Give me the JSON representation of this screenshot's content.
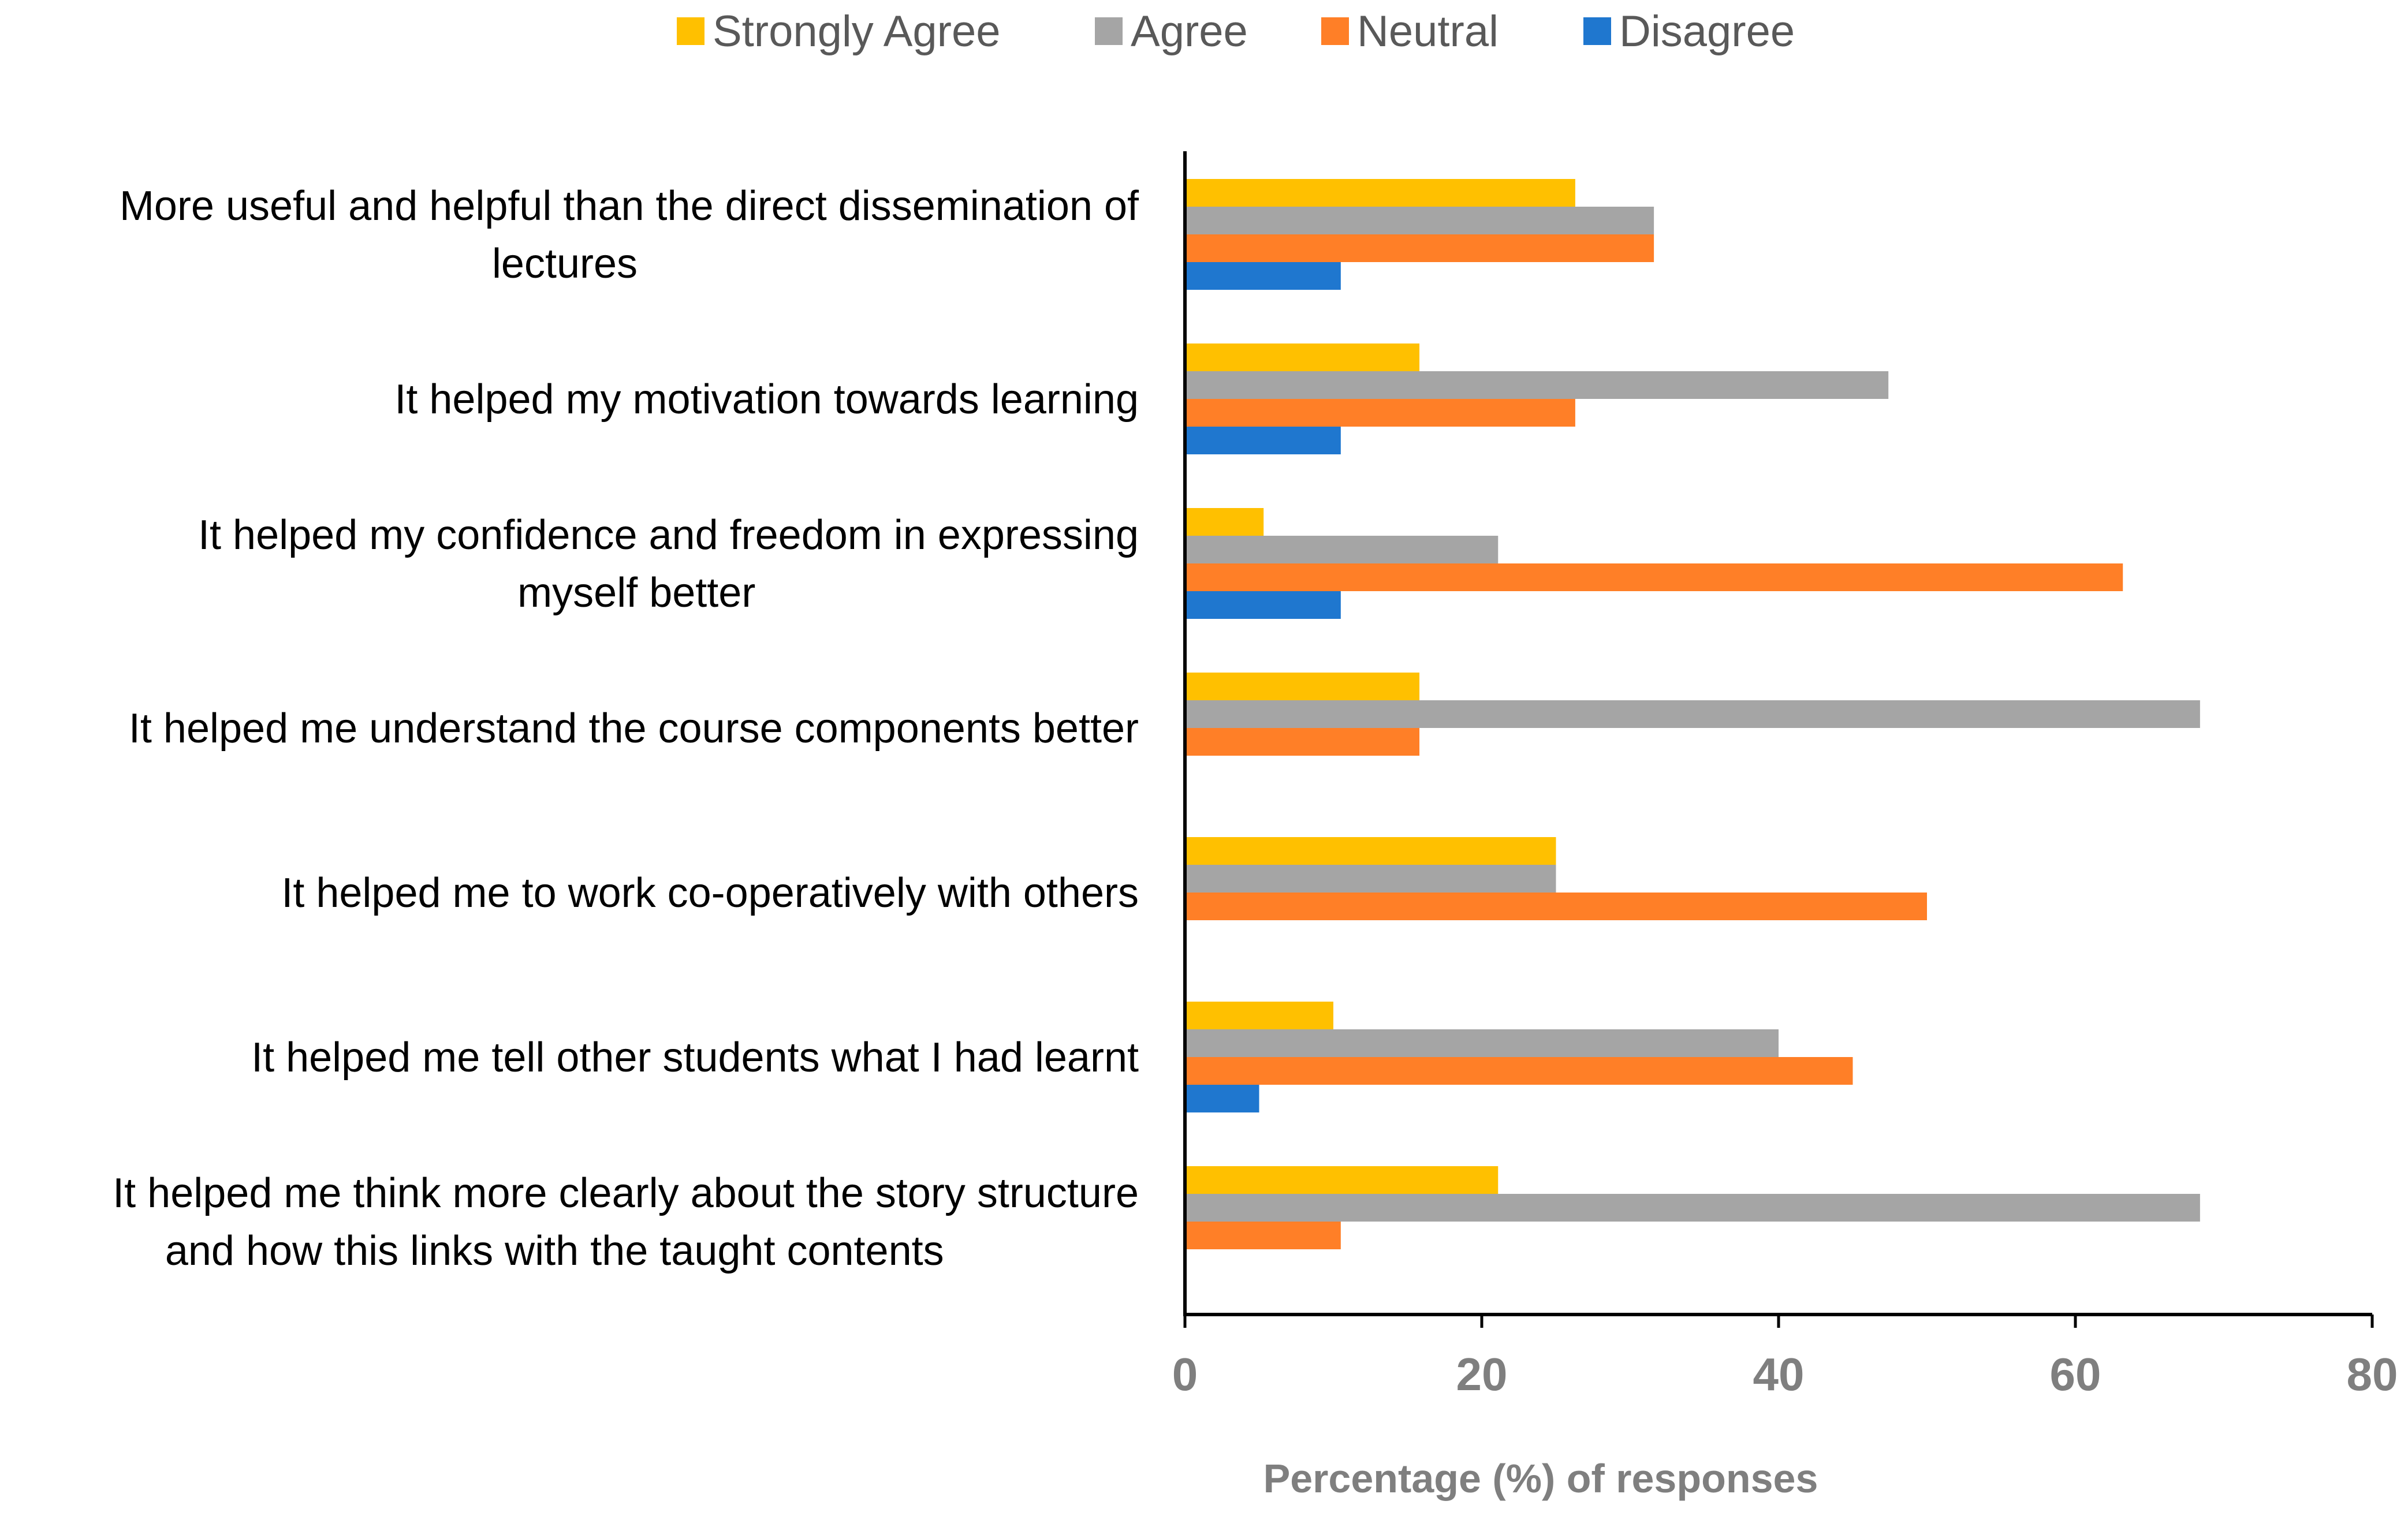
{
  "chart_data": {
    "type": "bar",
    "orientation": "horizontal",
    "title": "",
    "xlabel": "Percentage (%) of responses",
    "ylabel": "",
    "xlim": [
      0,
      80
    ],
    "xticks": [
      0,
      20,
      40,
      60,
      80
    ],
    "grid": false,
    "legend_position": "top-center",
    "categories": [
      [
        "More useful and helpful than the direct dissemination of",
        "lectures"
      ],
      [
        "It helped my motivation towards learning"
      ],
      [
        "It helped my confidence and freedom in expressing",
        "myself better"
      ],
      [
        "It helped me understand the course components better"
      ],
      [
        "It helped me to work co-operatively with others"
      ],
      [
        "It helped me tell other students what I had learnt"
      ],
      [
        "It helped me think more clearly about the story structure",
        "and how this links with the taught contents"
      ]
    ],
    "series": [
      {
        "name": "Strongly Agree",
        "color": "#FFC000",
        "values": [
          26.3,
          15.8,
          5.3,
          15.8,
          25,
          10,
          21.1
        ]
      },
      {
        "name": "Agree",
        "color": "#A5A5A5",
        "values": [
          31.6,
          47.4,
          21.1,
          68.4,
          25,
          40,
          68.4
        ]
      },
      {
        "name": "Neutral",
        "color": "#FF7F27",
        "values": [
          31.6,
          26.3,
          63.2,
          15.8,
          50,
          45,
          10.5
        ]
      },
      {
        "name": "Disagree",
        "color": "#1F77CF",
        "values": [
          10.5,
          10.5,
          10.5,
          0,
          0,
          5,
          0
        ]
      }
    ]
  }
}
